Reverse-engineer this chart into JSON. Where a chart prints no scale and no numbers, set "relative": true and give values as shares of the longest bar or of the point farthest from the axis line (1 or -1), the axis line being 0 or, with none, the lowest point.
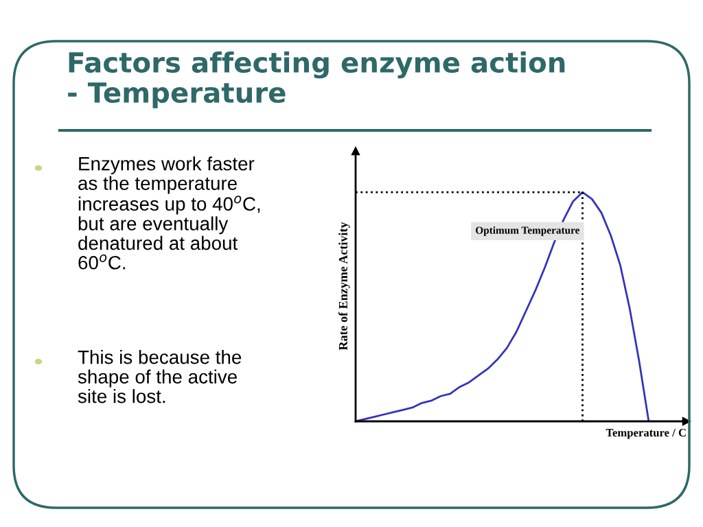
{
  "chart_data": {
    "type": "line",
    "relative": true,
    "title": "Factors affecting enzyme action\n- Temperature",
    "xlabel": "Temperature / C",
    "ylabel": "Rate of Enzyme Activity",
    "categories": [
      null,
      null,
      null,
      null,
      null,
      null,
      null,
      null,
      null,
      null,
      null,
      null,
      null,
      null,
      null,
      null,
      null,
      null,
      null,
      null,
      null,
      null,
      null,
      null,
      null,
      null,
      null,
      null,
      null,
      null,
      null,
      null,
      null,
      null,
      null,
      null
    ],
    "series": [
      {
        "color": "#3333bb",
        "values": [
          0,
          0.01,
          0.02,
          0.03,
          0.04,
          0.05,
          0.06,
          0.08,
          0.09,
          0.11,
          0.12,
          0.15,
          0.17,
          0.2,
          0.23,
          0.27,
          0.32,
          0.39,
          0.48,
          0.57,
          0.67,
          0.78,
          0.88,
          0.96,
          1,
          0.97,
          0.91,
          0.81,
          0.68,
          0.49,
          0.26,
          0,
          null,
          null,
          null,
          null
        ]
      }
    ],
    "annotations": [
      "Optimum Temperature",
      "Enzymes work faster\nas the temperature\nincreases up to 40$^{o}$C,\nbut are eventually\ndenatured at about\n60$^{o}$C.",
      "This is because the\nshape of the active\nsite is lost."
    ],
    "grid": false,
    "legend": false,
    "marker": "none",
    "line_style": "solid"
  }
}
